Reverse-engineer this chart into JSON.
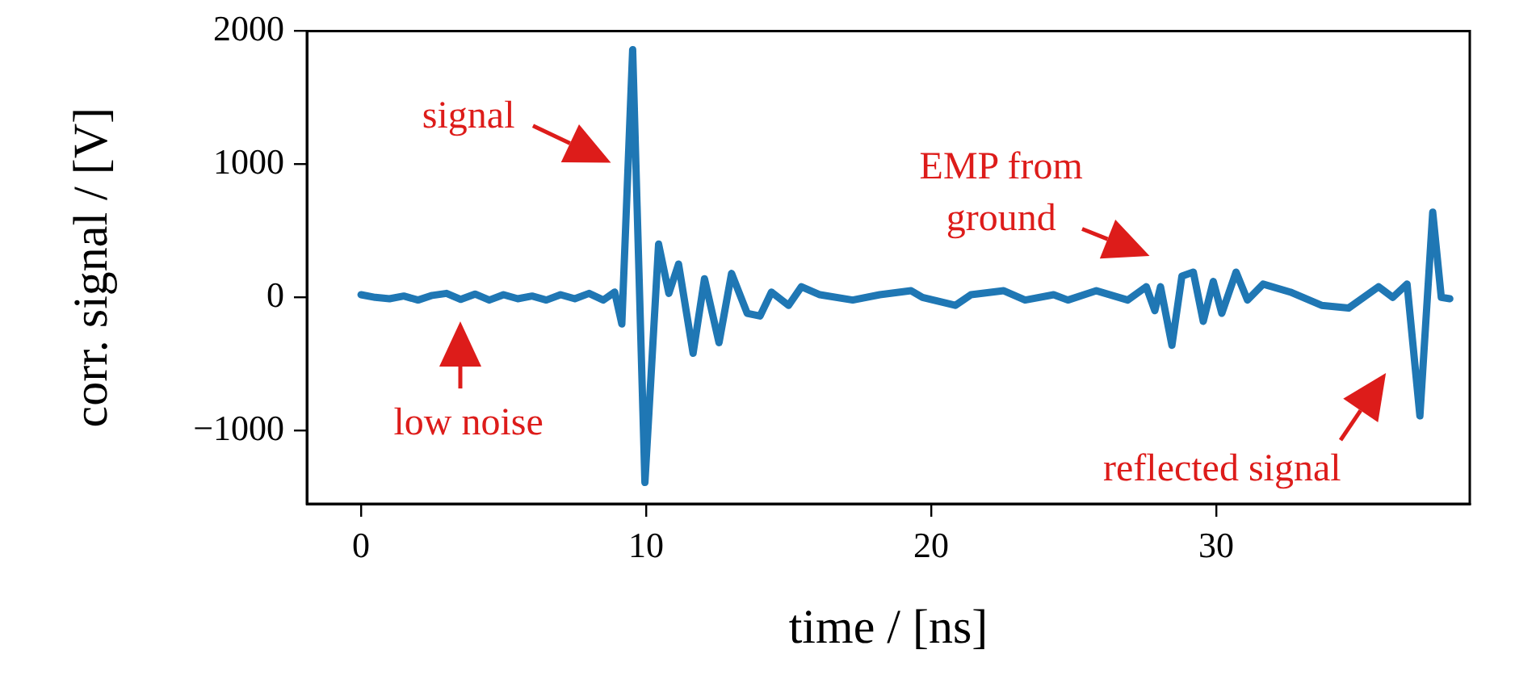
{
  "chart_data": {
    "type": "line",
    "xlabel": "time / [ns]",
    "ylabel": "corr. signal / [V]",
    "xlim": [
      -1.9,
      38.9
    ],
    "xticks": [
      0,
      10,
      20,
      30
    ],
    "ylim": [
      -1550,
      2000
    ],
    "yticks": [
      -1000,
      0,
      1000,
      2000
    ],
    "grid": false,
    "legend": false,
    "marker": "none",
    "line_style": "solid",
    "series": [
      {
        "color": "#1f77b4",
        "x": [
          0,
          0.5,
          1,
          1.5,
          2,
          2.5,
          3,
          3.5,
          4,
          4.5,
          5,
          5.5,
          6,
          6.5,
          7,
          7.5,
          8,
          8.5,
          8.9,
          9.15,
          9.53,
          9.96,
          10.44,
          10.8,
          11.14,
          11.65,
          12.05,
          12.56,
          13,
          13.55,
          14,
          14.4,
          15,
          15.45,
          16.1,
          17.25,
          18.2,
          19.3,
          19.7,
          20.85,
          21.4,
          22.55,
          23.3,
          24.3,
          24.8,
          25.8,
          26.9,
          27.55,
          27.85,
          28.05,
          28.45,
          28.8,
          29.2,
          29.55,
          29.9,
          30.2,
          30.7,
          31.1,
          31.65,
          32.6,
          33.7,
          34.65,
          35.7,
          36.2,
          36.7,
          37.15,
          37.6,
          37.9,
          38.2
        ],
        "values": [
          20,
          0,
          -10,
          10,
          -20,
          15,
          30,
          -15,
          25,
          -20,
          20,
          -10,
          10,
          -20,
          20,
          -10,
          30,
          -20,
          40,
          -200,
          1860,
          -1390,
          400,
          30,
          250,
          -420,
          140,
          -340,
          180,
          -120,
          -140,
          40,
          -60,
          80,
          20,
          -20,
          20,
          50,
          0,
          -60,
          20,
          50,
          -20,
          20,
          -20,
          50,
          -20,
          80,
          -100,
          80,
          -360,
          160,
          190,
          -180,
          120,
          -120,
          190,
          -20,
          100,
          40,
          -60,
          -80,
          80,
          0,
          100,
          -890,
          640,
          0,
          -10
        ]
      }
    ],
    "annotations": [
      "signal",
      "low noise",
      "EMP from\nground",
      "reflected signal"
    ]
  }
}
